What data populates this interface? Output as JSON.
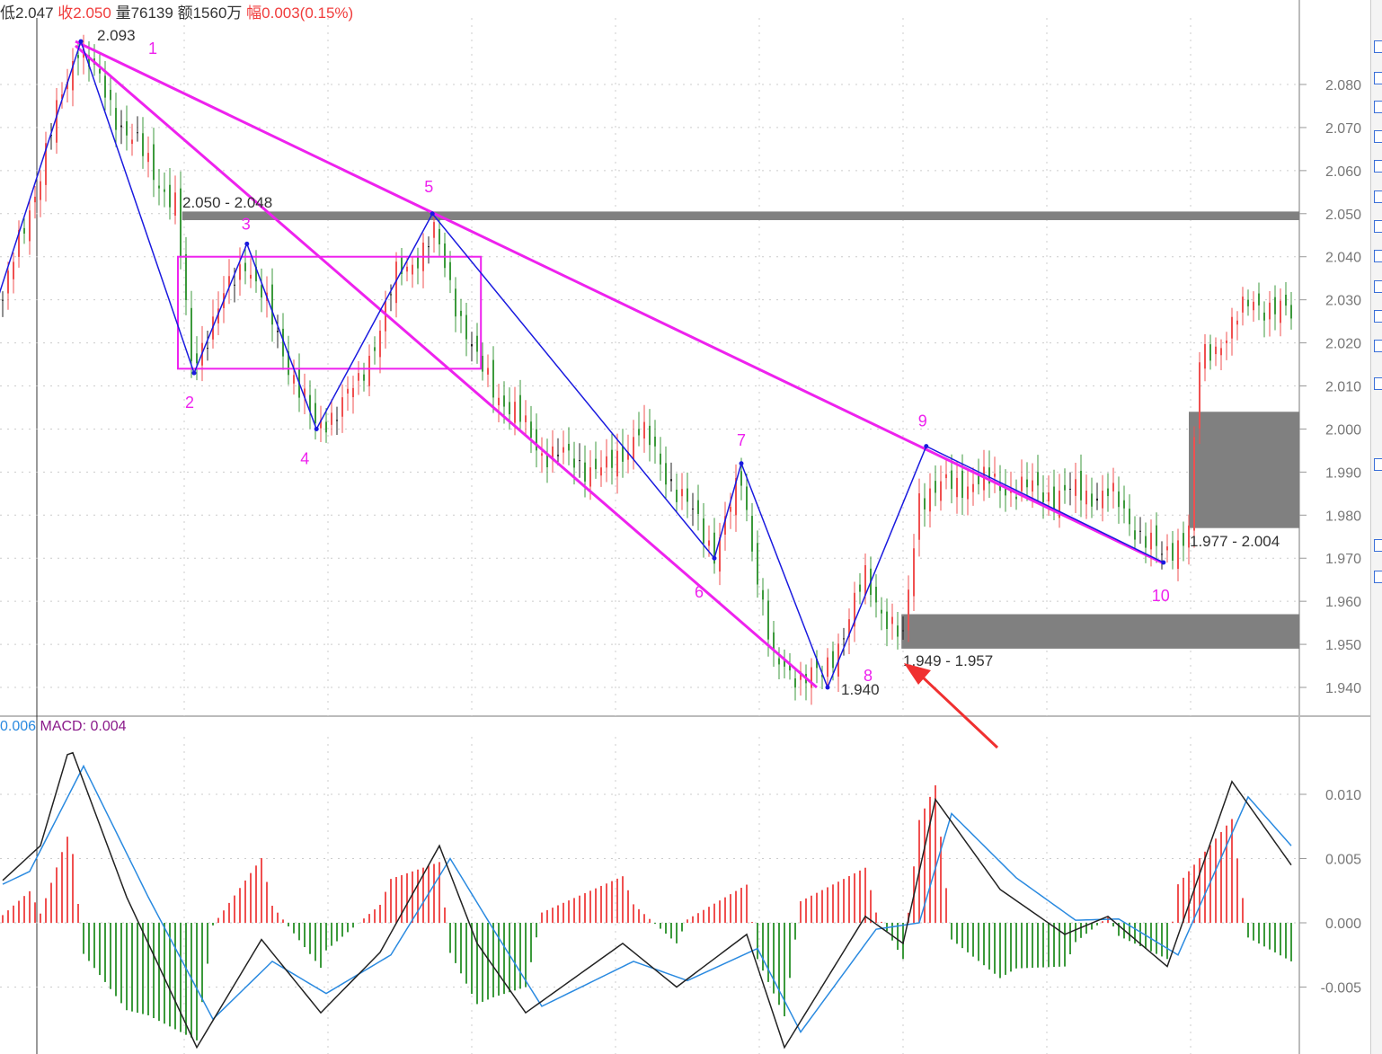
{
  "header": {
    "low_label": "低",
    "low_value": "2.047",
    "close_label": "收",
    "close_value": "2.050",
    "volume_label": "量",
    "volume_value": "76139",
    "amount_label": "额",
    "amount_value": "1560万",
    "change_label": "幅",
    "change_value": "0.003(0.15%)"
  },
  "macd_header": {
    "dea_value": "0.006",
    "macd_label": "MACD: 0.004"
  },
  "colors": {
    "up": "#f05050",
    "down": "#3c9a3c",
    "neutral": "#222222",
    "zigzag": "#1a1adf",
    "trendline": "#ee22ee",
    "zone": "#808080",
    "arrow": "#f03030",
    "dif": "#222222",
    "dea": "#2a8ae0",
    "macd_label": "#8a1a8a",
    "dea_label": "#2a8ae0"
  },
  "chart_data": [
    {
      "type": "candlestick",
      "yticks": [
        "2.080",
        "2.070",
        "2.060",
        "2.050",
        "2.040",
        "2.030",
        "2.020",
        "2.010",
        "2.000",
        "1.990",
        "1.980",
        "1.970",
        "1.960",
        "1.950",
        "1.940"
      ],
      "ylim": [
        1.936,
        2.1
      ],
      "grid": true,
      "price_path": [
        [
          0,
          2.03
        ],
        [
          7,
          2.06
        ],
        [
          14,
          2.09
        ],
        [
          20,
          2.075
        ],
        [
          32,
          2.052
        ],
        [
          35,
          2.015
        ],
        [
          45,
          2.04
        ],
        [
          58,
          2.0
        ],
        [
          66,
          2.01
        ],
        [
          73,
          2.035
        ],
        [
          80,
          2.045
        ],
        [
          88,
          2.015
        ],
        [
          100,
          1.995
        ],
        [
          112,
          1.99
        ],
        [
          118,
          2.0
        ],
        [
          132,
          1.972
        ],
        [
          137,
          1.988
        ],
        [
          143,
          1.945
        ],
        [
          152,
          1.942
        ],
        [
          160,
          1.965
        ],
        [
          167,
          1.95
        ],
        [
          170,
          1.985
        ],
        [
          180,
          1.988
        ],
        [
          195,
          1.985
        ],
        [
          205,
          1.985
        ],
        [
          215,
          1.97
        ],
        [
          220,
          1.977
        ],
        [
          222,
          2.015
        ],
        [
          232,
          2.03
        ],
        [
          239,
          2.026
        ]
      ],
      "zigzag": [
        {
          "bar": -1,
          "price": 2.03,
          "label": ""
        },
        {
          "bar": 14.5,
          "price": 2.09,
          "label": "1"
        },
        {
          "bar": 35.5,
          "price": 2.013,
          "label": "2"
        },
        {
          "bar": 45.3,
          "price": 2.043,
          "label": "3"
        },
        {
          "bar": 58.2,
          "price": 2.0,
          "label": "4"
        },
        {
          "bar": 79.7,
          "price": 2.05,
          "label": "5"
        },
        {
          "bar": 132,
          "price": 1.97,
          "label": "6"
        },
        {
          "bar": 137,
          "price": 1.992,
          "label": "7"
        },
        {
          "bar": 153,
          "price": 1.94,
          "label": "8"
        },
        {
          "bar": 171.3,
          "price": 1.996,
          "label": "9"
        },
        {
          "bar": 215.3,
          "price": 1.969,
          "label": "10"
        }
      ],
      "trendlines": [
        {
          "from": [
            13.5,
            2.09
          ],
          "to": [
            215,
            1.969
          ]
        },
        {
          "from": [
            13.5,
            2.089
          ],
          "to": [
            151,
            1.94
          ]
        }
      ],
      "box": {
        "from_bar": 32.5,
        "to_bar": 88.7,
        "top": 2.04,
        "bottom": 2.014
      },
      "zones": [
        {
          "from_bar": 33.3,
          "top": 2.0505,
          "bottom": 2.0485,
          "label": "2.050 - 2.048"
        },
        {
          "from_bar": 220,
          "top": 2.004,
          "bottom": 1.977,
          "label": "1.977 - 2.004"
        },
        {
          "from_bar": 166.7,
          "top": 1.957,
          "bottom": 1.949,
          "label": "1.949 - 1.957"
        }
      ],
      "annotations": {
        "high": "2.093",
        "low": "1.940"
      }
    },
    {
      "type": "macd",
      "yticks": [
        "0.010",
        "0.005",
        "0.000",
        "-0.005"
      ],
      "dif": [
        [
          0,
          0.0033
        ],
        [
          7,
          0.006
        ],
        [
          12.5,
          0.0138
        ],
        [
          23,
          0.002
        ],
        [
          36,
          -0.0097
        ],
        [
          48,
          -0.0013
        ],
        [
          59,
          -0.007
        ],
        [
          70,
          -0.0023
        ],
        [
          81,
          0.006
        ],
        [
          88,
          -0.0016
        ],
        [
          97,
          -0.007
        ],
        [
          115,
          -0.0016
        ],
        [
          125,
          -0.005
        ],
        [
          138,
          -0.0009
        ],
        [
          145,
          -0.0097
        ],
        [
          160,
          0.0005
        ],
        [
          167,
          -0.0016
        ],
        [
          173,
          0.0096
        ],
        [
          185,
          0.0026
        ],
        [
          197,
          -0.0009
        ],
        [
          205,
          0.0005
        ],
        [
          216,
          -0.0034
        ],
        [
          228,
          0.011
        ],
        [
          239,
          0.0045
        ]
      ],
      "dea": [
        [
          0,
          0.003
        ],
        [
          5,
          0.004
        ],
        [
          15,
          0.0122
        ],
        [
          27,
          0.002
        ],
        [
          39,
          -0.0075
        ],
        [
          50,
          -0.003
        ],
        [
          60,
          -0.0055
        ],
        [
          72,
          -0.0025
        ],
        [
          83,
          0.005
        ],
        [
          91,
          -0.0005
        ],
        [
          100,
          -0.0065
        ],
        [
          117,
          -0.003
        ],
        [
          127,
          -0.0045
        ],
        [
          140,
          -0.002
        ],
        [
          148,
          -0.0085
        ],
        [
          162,
          -0.0005
        ],
        [
          170,
          0.0
        ],
        [
          176,
          0.0085
        ],
        [
          188,
          0.0035
        ],
        [
          199,
          0.0002
        ],
        [
          207,
          0.0003
        ],
        [
          218,
          -0.0025
        ],
        [
          231,
          0.0098
        ],
        [
          239,
          0.006
        ]
      ]
    }
  ]
}
